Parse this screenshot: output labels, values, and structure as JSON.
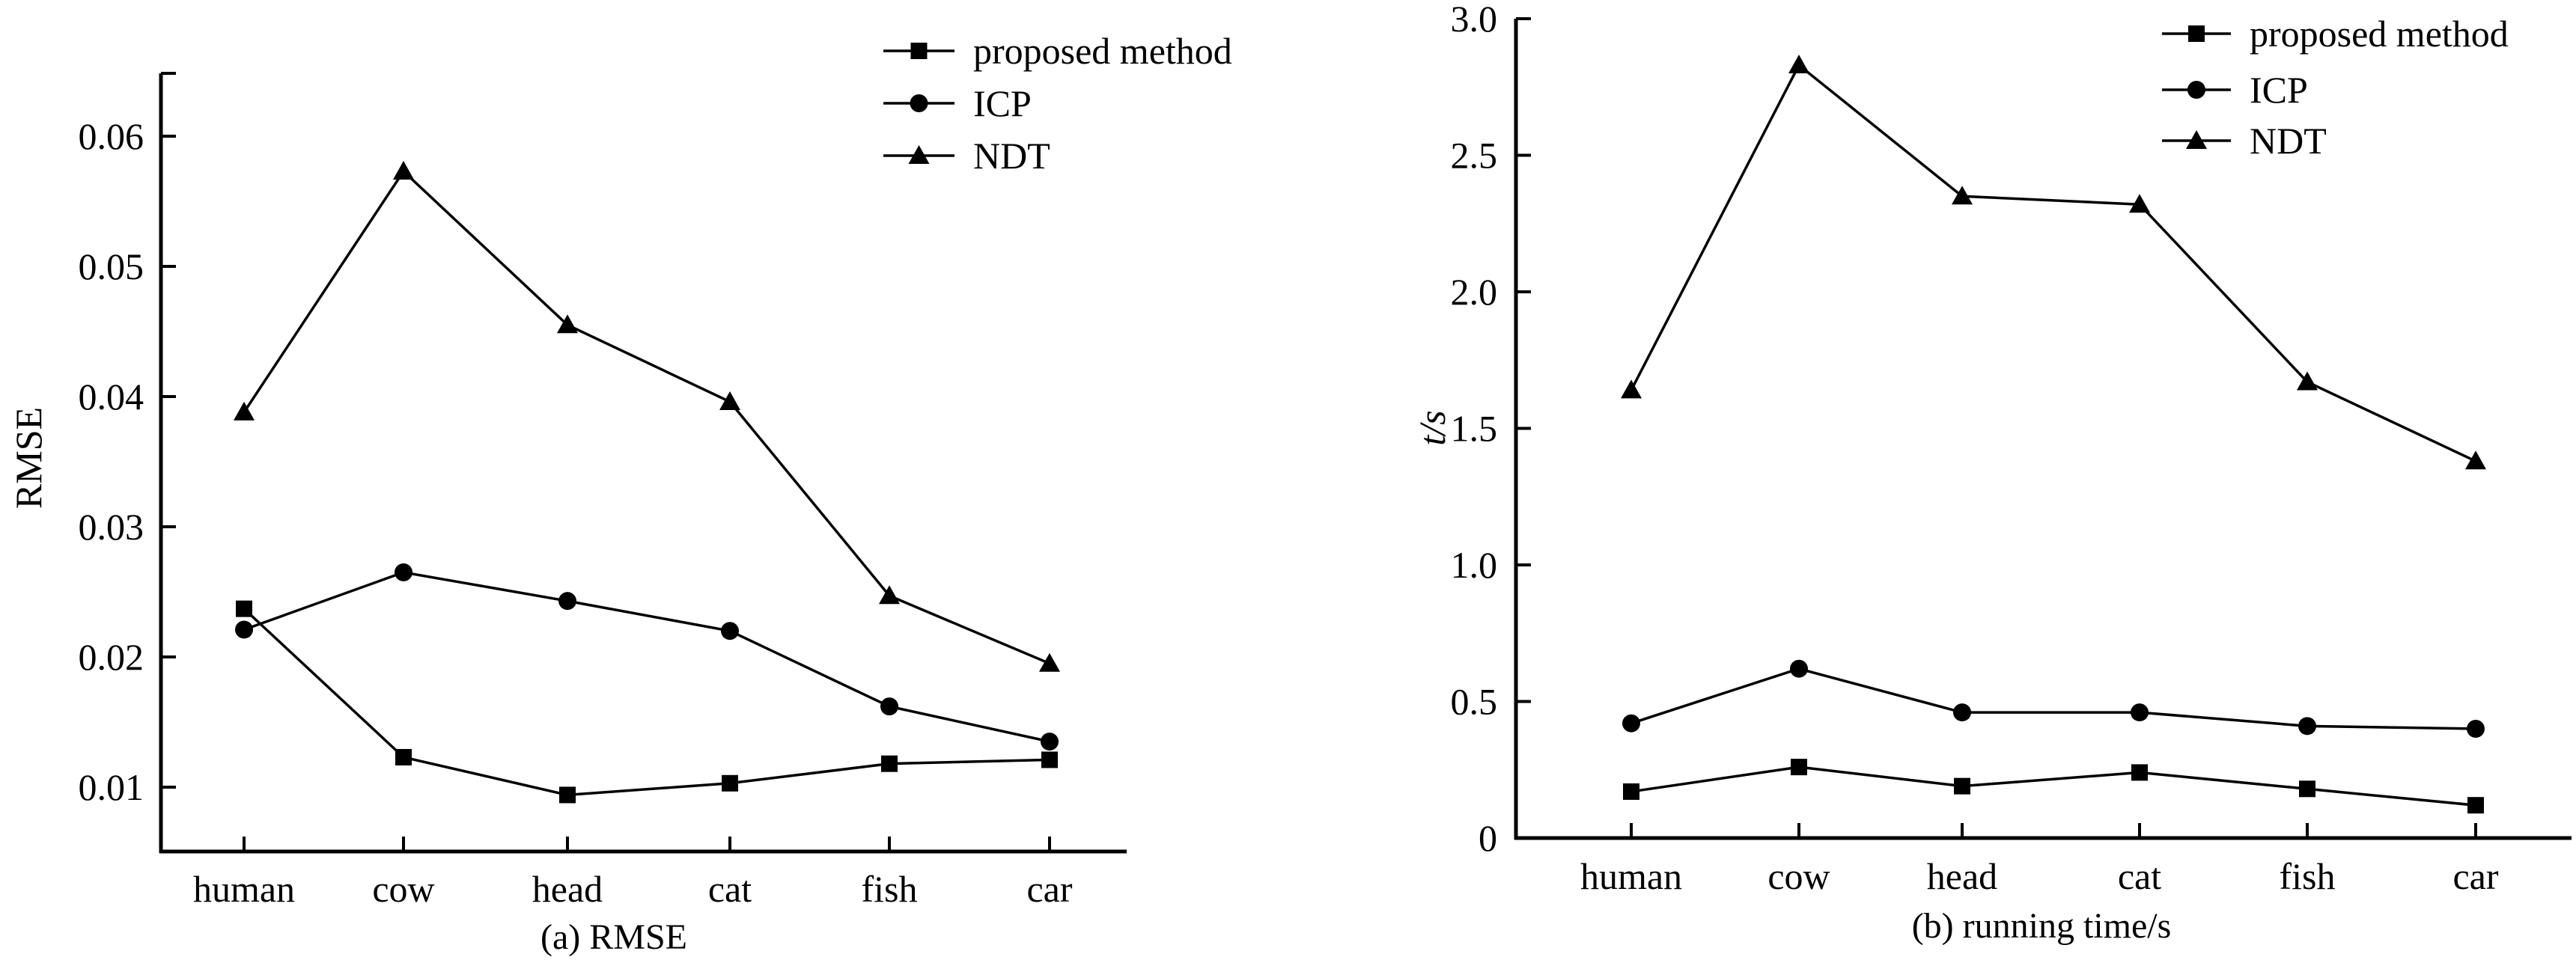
{
  "chart_data": [
    {
      "type": "line",
      "caption": "(a) RMSE",
      "ylabel": "RMSE",
      "categories": [
        "human",
        "cow",
        "head",
        "cat",
        "fish",
        "car"
      ],
      "ylim": [
        0,
        0.066
      ],
      "yticks": [
        0.01,
        0.02,
        0.03,
        0.04,
        0.05,
        0.06
      ],
      "ytick_labels": [
        "0.01",
        "0.02",
        "0.03",
        "0.04",
        "0.05",
        "0.06"
      ],
      "legend_position": "top-right",
      "series": [
        {
          "name": "proposed method",
          "marker": "square",
          "values": [
            0.0237,
            0.0123,
            0.0094,
            0.0103,
            0.0118,
            0.0121
          ]
        },
        {
          "name": "ICP",
          "marker": "circle",
          "values": [
            0.0221,
            0.0265,
            0.0243,
            0.022,
            0.0162,
            0.0135
          ]
        },
        {
          "name": "NDT",
          "marker": "triangle",
          "values": [
            0.0388,
            0.0573,
            0.0455,
            0.0396,
            0.0247,
            0.0195
          ]
        }
      ]
    },
    {
      "type": "line",
      "caption": "(b) running time/s",
      "ylabel": "t/s",
      "categories": [
        "human",
        "cow",
        "head",
        "cat",
        "fish",
        "car"
      ],
      "ylim": [
        0,
        3.0
      ],
      "yticks": [
        0,
        0.5,
        1.0,
        1.5,
        2.0,
        2.5,
        3.0
      ],
      "ytick_labels": [
        "0",
        "0.5",
        "1.0",
        "1.5",
        "2.0",
        "2.5",
        "3.0"
      ],
      "legend_position": "top-right",
      "series": [
        {
          "name": "proposed method",
          "marker": "square",
          "values": [
            0.17,
            0.26,
            0.19,
            0.24,
            0.18,
            0.12
          ]
        },
        {
          "name": "ICP",
          "marker": "circle",
          "values": [
            0.42,
            0.62,
            0.46,
            0.46,
            0.41,
            0.4
          ]
        },
        {
          "name": "NDT",
          "marker": "triangle",
          "values": [
            1.64,
            2.83,
            2.35,
            2.32,
            1.67,
            1.38
          ]
        }
      ]
    }
  ]
}
